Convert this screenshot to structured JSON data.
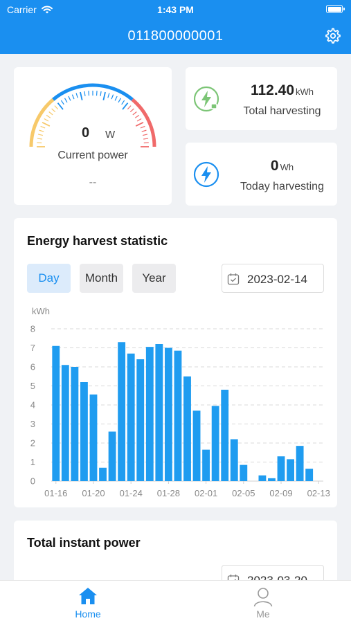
{
  "status_bar": {
    "carrier": "Carrier",
    "time": "1:43 PM"
  },
  "header": {
    "title": "011800000001"
  },
  "gauge": {
    "value": "0",
    "unit": "W",
    "label": "Current power",
    "secondary": "--"
  },
  "total_harvesting": {
    "value": "112.40",
    "unit": "kWh",
    "label": "Total harvesting"
  },
  "today_harvesting": {
    "value": "0",
    "unit": "Wh",
    "label": "Today harvesting"
  },
  "energy_chart": {
    "title": "Energy harvest statistic",
    "tabs": [
      {
        "label": "Day",
        "active": true
      },
      {
        "label": "Month",
        "active": false
      },
      {
        "label": "Year",
        "active": false
      }
    ],
    "date": "2023-02-14"
  },
  "instant_power": {
    "title": "Total instant power",
    "date": "2023-03-20"
  },
  "tab_bar": {
    "home_label": "Home",
    "me_label": "Me"
  },
  "colors": {
    "primary": "#1a8ff0",
    "bar": "#1f9cf0",
    "gauge_yellow": "#f7c96a",
    "gauge_red": "#f06a6a",
    "harvest_green": "#7cc576"
  },
  "chart_data": {
    "type": "bar",
    "ylabel": "kWh",
    "ylim": [
      0,
      8
    ],
    "yticks": [
      0,
      1,
      2,
      3,
      4,
      5,
      6,
      7,
      8
    ],
    "categories": [
      "01-16",
      "01-17",
      "01-18",
      "01-19",
      "01-20",
      "01-21",
      "01-22",
      "01-23",
      "01-24",
      "01-25",
      "01-26",
      "01-27",
      "01-28",
      "01-29",
      "01-30",
      "01-31",
      "02-01",
      "02-02",
      "02-03",
      "02-04",
      "02-05",
      "02-06",
      "02-07",
      "02-08",
      "02-09",
      "02-10",
      "02-11",
      "02-12",
      "02-13"
    ],
    "values": [
      7.1,
      6.1,
      6.0,
      5.2,
      4.55,
      0.7,
      2.6,
      7.3,
      6.7,
      6.4,
      7.05,
      7.2,
      7.0,
      6.85,
      5.5,
      3.7,
      1.65,
      3.95,
      4.8,
      2.2,
      0.85,
      0,
      0.3,
      0.15,
      1.3,
      1.15,
      1.85,
      0.65,
      0
    ],
    "xtick_labels": [
      "01-16",
      "01-20",
      "01-24",
      "01-28",
      "02-01",
      "02-05",
      "02-09",
      "02-13"
    ],
    "xtick_indices": [
      0,
      4,
      8,
      12,
      16,
      20,
      24,
      28
    ],
    "grid": true
  }
}
